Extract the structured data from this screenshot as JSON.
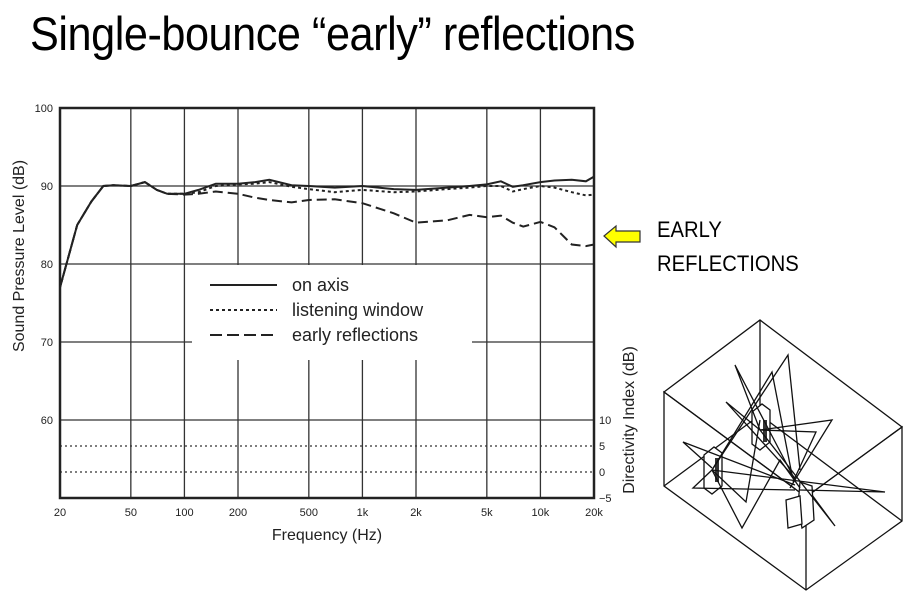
{
  "slide": {
    "title": "Single-bounce “early” reflections",
    "annotation": {
      "line1": "EARLY",
      "line2": "REFLECTIONS",
      "arrow_color": "#ffff00"
    },
    "diagram": {
      "description": "isometric room with two loudspeakers, a listener chair, and reflected sound ray paths",
      "icon": "room-reflections-diagram"
    }
  },
  "chart_data": {
    "type": "line",
    "title": "",
    "xlabel": "Frequency (Hz)",
    "ylabel": "Sound Pressure Level (dB)",
    "y2label": "Directivity Index (dB)",
    "xscale": "log",
    "xlim": [
      20,
      20000
    ],
    "ylim": [
      50,
      100
    ],
    "y2lim": [
      -5,
      10
    ],
    "x_ticks": [
      "20",
      "50",
      "100",
      "200",
      "500",
      "1k",
      "2k",
      "5k",
      "10k",
      "20k"
    ],
    "y_ticks": [
      "100",
      "90",
      "80",
      "70",
      "60"
    ],
    "y2_ticks": [
      "10",
      "5",
      "0",
      "−5"
    ],
    "grid": true,
    "legend_position": "center-left inside",
    "x": [
      20,
      25,
      30,
      35,
      40,
      50,
      60,
      70,
      80,
      100,
      120,
      150,
      200,
      250,
      300,
      400,
      500,
      700,
      1000,
      1500,
      2000,
      3000,
      4000,
      5000,
      6000,
      7000,
      8000,
      10000,
      12000,
      15000,
      18000,
      20000
    ],
    "series": [
      {
        "name": "on axis",
        "style": "solid",
        "values": [
          77,
          85,
          88,
          90,
          90.1,
          90,
          90.5,
          89.5,
          89,
          89,
          89.5,
          90.3,
          90.3,
          90.5,
          90.8,
          90.1,
          90,
          89.8,
          90,
          89.6,
          89.5,
          89.8,
          90,
          90.2,
          90.6,
          89.9,
          90.1,
          90.5,
          90.7,
          90.8,
          90.6,
          91.2
        ]
      },
      {
        "name": "listening window",
        "style": "dotted",
        "values": [
          77,
          85,
          88,
          90,
          90.1,
          90,
          90.5,
          89.5,
          89,
          89,
          89.2,
          90,
          90.2,
          90.3,
          90.5,
          89.9,
          89.6,
          89.2,
          89.5,
          89.2,
          89.3,
          89.6,
          89.8,
          90,
          90,
          89.3,
          89.6,
          90,
          89.8,
          89.2,
          88.8,
          88.9
        ]
      },
      {
        "name": "early reflections",
        "style": "dashed",
        "values": [
          77,
          85,
          88,
          90,
          90.1,
          90,
          90.5,
          89.5,
          89,
          88.9,
          89,
          89.3,
          89,
          88.5,
          88.2,
          87.9,
          88.2,
          88.3,
          87.8,
          86.5,
          85.3,
          85.6,
          86.3,
          86,
          86.2,
          85.3,
          84.8,
          85.4,
          84.7,
          82.5,
          82.3,
          82.5
        ]
      }
    ],
    "directivity_series": [
      {
        "name": "directivity index reference 5 dB",
        "style": "dotted",
        "values_constant": 5
      },
      {
        "name": "directivity index reference 0 dB",
        "style": "dotted",
        "values_constant": 0
      }
    ]
  }
}
